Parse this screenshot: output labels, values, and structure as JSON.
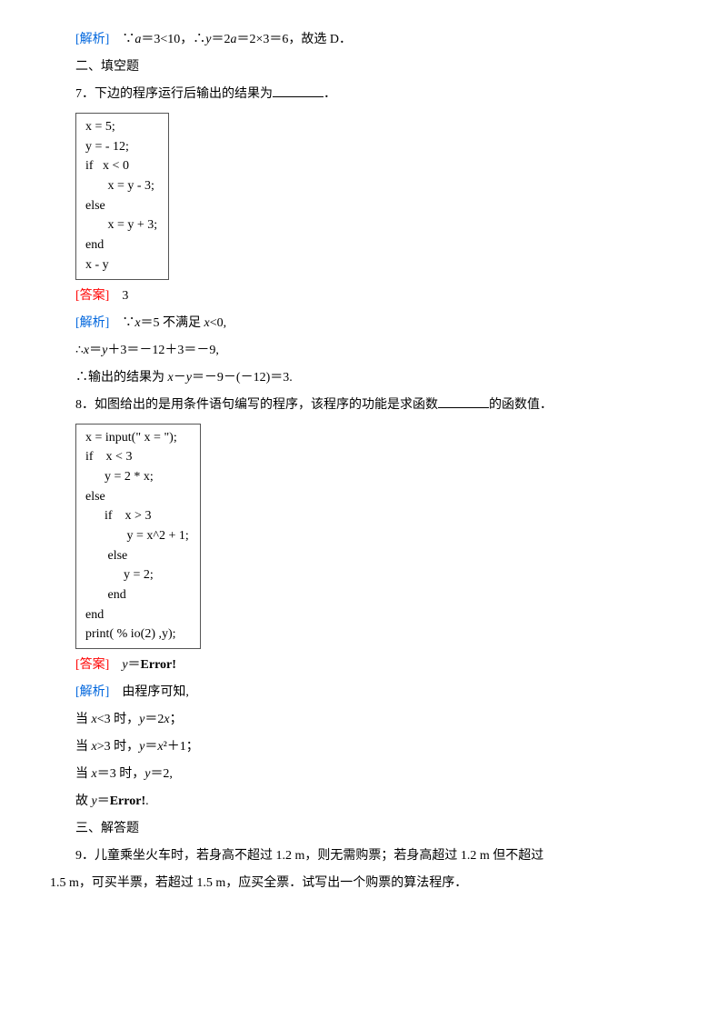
{
  "l1_a": "[解析]",
  "l1_b": "　∵",
  "l1_c": "a",
  "l1_d": "＝3<10，∴",
  "l1_e": "y",
  "l1_f": "＝2",
  "l1_g": "a",
  "l1_h": "＝2×3＝6，故选 D．",
  "l2": "二、填空题",
  "l3": "7．下边的程序运行后输出的结果为",
  "l3b": "．",
  "code1": {
    "r1": "x = 5;",
    "r2": "y = - 12;",
    "r3": "if   x < 0",
    "r4": "       x = y - 3;",
    "r5": "else",
    "r6": "       x = y + 3;",
    "r7": "end",
    "r8": "x - y"
  },
  "ans1a": "[答案]",
  "ans1b": "　3",
  "l4a": "[解析]",
  "l4b": "　∵",
  "l4c": "x",
  "l4d": "＝5 不满足 ",
  "l4e": "x",
  "l4f": "<0,",
  "l5a": "∴",
  "l5b": "x",
  "l5c": "＝",
  "l5d": "y",
  "l5e": "＋3＝－12＋3＝－9,",
  "l6a": "∴输出的结果为 ",
  "l6b": "x",
  "l6c": "－",
  "l6d": "y",
  "l6e": "＝－9－(－12)＝3.",
  "l7a": "8．如图给出的是用条件语句编写的程序，该程序的功能是求函数",
  "l7b": "的函数值．",
  "code2": {
    "r1": "x = input(\" x = \");",
    "r2": "if    x < 3",
    "r3": "      y = 2 * x;",
    "r4": "else",
    "r5": "      if    x > 3",
    "r6": "             y = x^2 + 1;",
    "r7": "       else",
    "r8": "            y = 2;",
    "r9": "       end",
    "r10": "end",
    "r11": "print( % io(2) ,y);"
  },
  "ans2a": "[答案]",
  "ans2b": "　",
  "ans2c": "y",
  "ans2d": "＝",
  "ans2e": "Error!",
  "l8a": "[解析]",
  "l8b": "　由程序可知,",
  "l9a": "当 ",
  "l9b": "x",
  "l9c": "<3 时，",
  "l9d": "y",
  "l9e": "＝2",
  "l9f": "x",
  "l9g": "；",
  "l10a": "当 ",
  "l10b": "x",
  "l10c": ">3 时，",
  "l10d": "y",
  "l10e": "＝",
  "l10f": "x",
  "l10g": "²＋1；",
  "l11a": "当 ",
  "l11b": "x",
  "l11c": "＝3 时，",
  "l11d": "y",
  "l11e": "＝2,",
  "l12a": "故 ",
  "l12b": "y",
  "l12c": "＝",
  "l12d": "Error!",
  "l12e": ".",
  "l13": "三、解答题",
  "l14": "9．儿童乘坐火车时，若身高不超过 1.2 m，则无需购票；若身高超过 1.2 m 但不超过",
  "l15": "1.5 m，可买半票，若超过 1.5 m，应买全票．试写出一个购票的算法程序．"
}
